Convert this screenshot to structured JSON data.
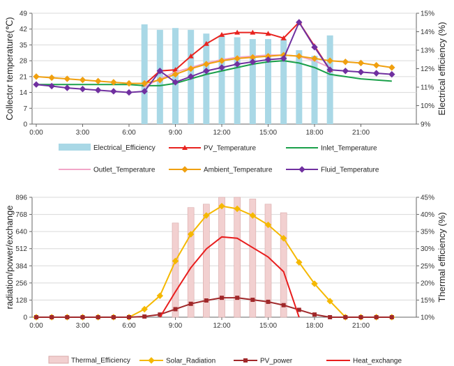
{
  "chart_data": [
    {
      "type": "bar+line",
      "ylabel_left": "Collector  temperature(℃)",
      "ylabel_right": "Electrical efficiency  (%)",
      "ylim_left": [
        0,
        49
      ],
      "yticks_left": [
        "0",
        "7",
        "14",
        "21",
        "28",
        "35",
        "42",
        "49"
      ],
      "ylim_right": [
        9,
        15
      ],
      "yticks_right": [
        "9%",
        "10%",
        "11%",
        "12%",
        "13%",
        "14%",
        "15%"
      ],
      "xlim": [
        0,
        24
      ],
      "xticks": [
        "0:00",
        "3:00",
        "6:00",
        "9:00",
        "12:00",
        "15:00",
        "18:00",
        "21:00"
      ],
      "bars": {
        "name": "Electrical_Efficiency",
        "color": "#a9d8e6",
        "x": [
          7,
          8,
          9,
          10,
          11,
          12,
          13,
          14,
          15,
          16,
          17,
          18,
          19
        ],
        "values": [
          14.4,
          14.1,
          14.2,
          14.1,
          13.9,
          13.8,
          13.7,
          13.6,
          13.6,
          13.6,
          13.0,
          12.7,
          13.8
        ]
      },
      "series": [
        {
          "name": "PV_Temperature",
          "color": "#e8231f",
          "marker": "triangle",
          "x": [
            7,
            8,
            9,
            10,
            11,
            12,
            13,
            14,
            15,
            16,
            17,
            18,
            19
          ],
          "values": [
            17.5,
            23.5,
            24.0,
            30.0,
            35.5,
            39.5,
            40.5,
            40.5,
            40.0,
            38.0,
            45.0,
            34.5,
            24.0
          ]
        },
        {
          "name": "Inlet_Temperature",
          "color": "#1aa04a",
          "marker": "none",
          "x": [
            0,
            1,
            2,
            3,
            4,
            5,
            6,
            7,
            8,
            9,
            10,
            11,
            12,
            13,
            14,
            15,
            16,
            17,
            18,
            19,
            20,
            21,
            22,
            23
          ],
          "values": [
            17.5,
            17.5,
            17.5,
            17.5,
            17.5,
            17.5,
            17.5,
            17.0,
            17.0,
            18.0,
            20.0,
            22.0,
            23.5,
            25.0,
            26.5,
            27.5,
            28.0,
            27.0,
            25.0,
            22.0,
            21.0,
            20.0,
            19.5,
            19.0
          ]
        },
        {
          "name": "Outlet_Temperature",
          "color": "#f2a6c8",
          "marker": "none",
          "x": [
            7,
            8,
            9,
            10,
            11,
            12,
            13,
            14,
            15,
            16,
            17,
            18,
            19
          ],
          "values": [
            16.5,
            20.0,
            23.0,
            25.0,
            27.0,
            28.5,
            29.5,
            30.0,
            30.5,
            30.5,
            30.0,
            28.0,
            25.0
          ]
        },
        {
          "name": "Ambient_Temperature",
          "color": "#f0a010",
          "marker": "diamond",
          "x": [
            0,
            1,
            2,
            3,
            4,
            5,
            6,
            7,
            8,
            9,
            10,
            11,
            12,
            13,
            14,
            15,
            16,
            17,
            18,
            19,
            20,
            21,
            22,
            23
          ],
          "values": [
            21.0,
            20.5,
            20.0,
            19.5,
            19.0,
            18.5,
            18.0,
            18.0,
            19.5,
            22.0,
            24.5,
            26.5,
            28.0,
            29.0,
            29.5,
            30.0,
            30.5,
            30.0,
            29.0,
            28.0,
            27.5,
            27.0,
            26.0,
            25.0
          ]
        },
        {
          "name": "Fluid_Temperature",
          "color": "#7030a0",
          "marker": "diamond",
          "x": [
            0,
            1,
            2,
            3,
            4,
            5,
            6,
            7,
            8,
            9,
            10,
            11,
            12,
            13,
            14,
            15,
            16,
            17,
            18,
            19,
            20,
            21,
            22,
            23
          ],
          "values": [
            17.5,
            16.8,
            16.0,
            15.5,
            15.0,
            14.5,
            14.0,
            14.5,
            23.5,
            18.5,
            21.0,
            23.5,
            25.0,
            26.5,
            27.5,
            28.5,
            29.0,
            45.0,
            34.0,
            24.0,
            23.5,
            23.0,
            22.5,
            22.0
          ]
        }
      ],
      "legend": {
        "placement": "bottom",
        "items": [
          "Electrical_Efficiency",
          "PV_Temperature",
          "Inlet_Temperature",
          "Outlet_Temperature",
          "Ambient_Temperature",
          "Fluid_Temperature"
        ]
      }
    },
    {
      "type": "bar+line",
      "ylabel_left": "radiation/power/exchange",
      "ylabel_right": "Thermal efficiency (%)",
      "ylim_left": [
        0,
        896
      ],
      "yticks_left": [
        "0",
        "128",
        "256",
        "384",
        "512",
        "640",
        "768",
        "896"
      ],
      "ylim_right": [
        10,
        45
      ],
      "yticks_right": [
        "10%",
        "15%",
        "20%",
        "25%",
        "30%",
        "35%",
        "40%",
        "45%"
      ],
      "xlim": [
        0,
        24
      ],
      "xticks": [
        "0:00",
        "3:00",
        "6:00",
        "9:00",
        "12:00",
        "15:00",
        "18:00",
        "21:00"
      ],
      "bars": {
        "name": "Thermal_Efficiency",
        "color": "#f2d0d0",
        "x": [
          9,
          10,
          11,
          12,
          13,
          14,
          15,
          16
        ],
        "values": [
          37.5,
          42.0,
          43.0,
          45.0,
          45.0,
          44.5,
          43.0,
          40.5
        ]
      },
      "series": [
        {
          "name": "Solar_Radiation",
          "color": "#f5b800",
          "marker": "diamond",
          "x": [
            0,
            1,
            2,
            3,
            4,
            5,
            6,
            7,
            8,
            9,
            10,
            11,
            12,
            13,
            14,
            15,
            16,
            17,
            18,
            19,
            20,
            21,
            22,
            23
          ],
          "values": [
            0,
            0,
            0,
            0,
            0,
            0,
            0,
            60,
            160,
            420,
            620,
            760,
            830,
            810,
            760,
            690,
            590,
            410,
            250,
            120,
            0,
            0,
            0,
            0
          ]
        },
        {
          "name": "PV_power",
          "color": "#a0282a",
          "marker": "square",
          "x": [
            0,
            1,
            2,
            3,
            4,
            5,
            6,
            7,
            8,
            9,
            10,
            11,
            12,
            13,
            14,
            15,
            16,
            17,
            18,
            19,
            20,
            21,
            22,
            23
          ],
          "values": [
            0,
            0,
            0,
            0,
            0,
            0,
            0,
            5,
            20,
            60,
            100,
            125,
            145,
            145,
            130,
            115,
            90,
            55,
            20,
            0,
            0,
            0,
            0,
            0
          ]
        },
        {
          "name": "Heat_exchange",
          "color": "#e81e1e",
          "marker": "none",
          "x": [
            8,
            9,
            10,
            11,
            12,
            13,
            14,
            15,
            16,
            17
          ],
          "values": [
            0,
            190,
            370,
            510,
            600,
            590,
            520,
            450,
            340,
            0
          ]
        }
      ],
      "legend": {
        "placement": "bottom",
        "items": [
          "Thermal_Efficiency",
          "Solar_Radiation",
          "PV_power",
          "Heat_exchange"
        ]
      }
    }
  ]
}
